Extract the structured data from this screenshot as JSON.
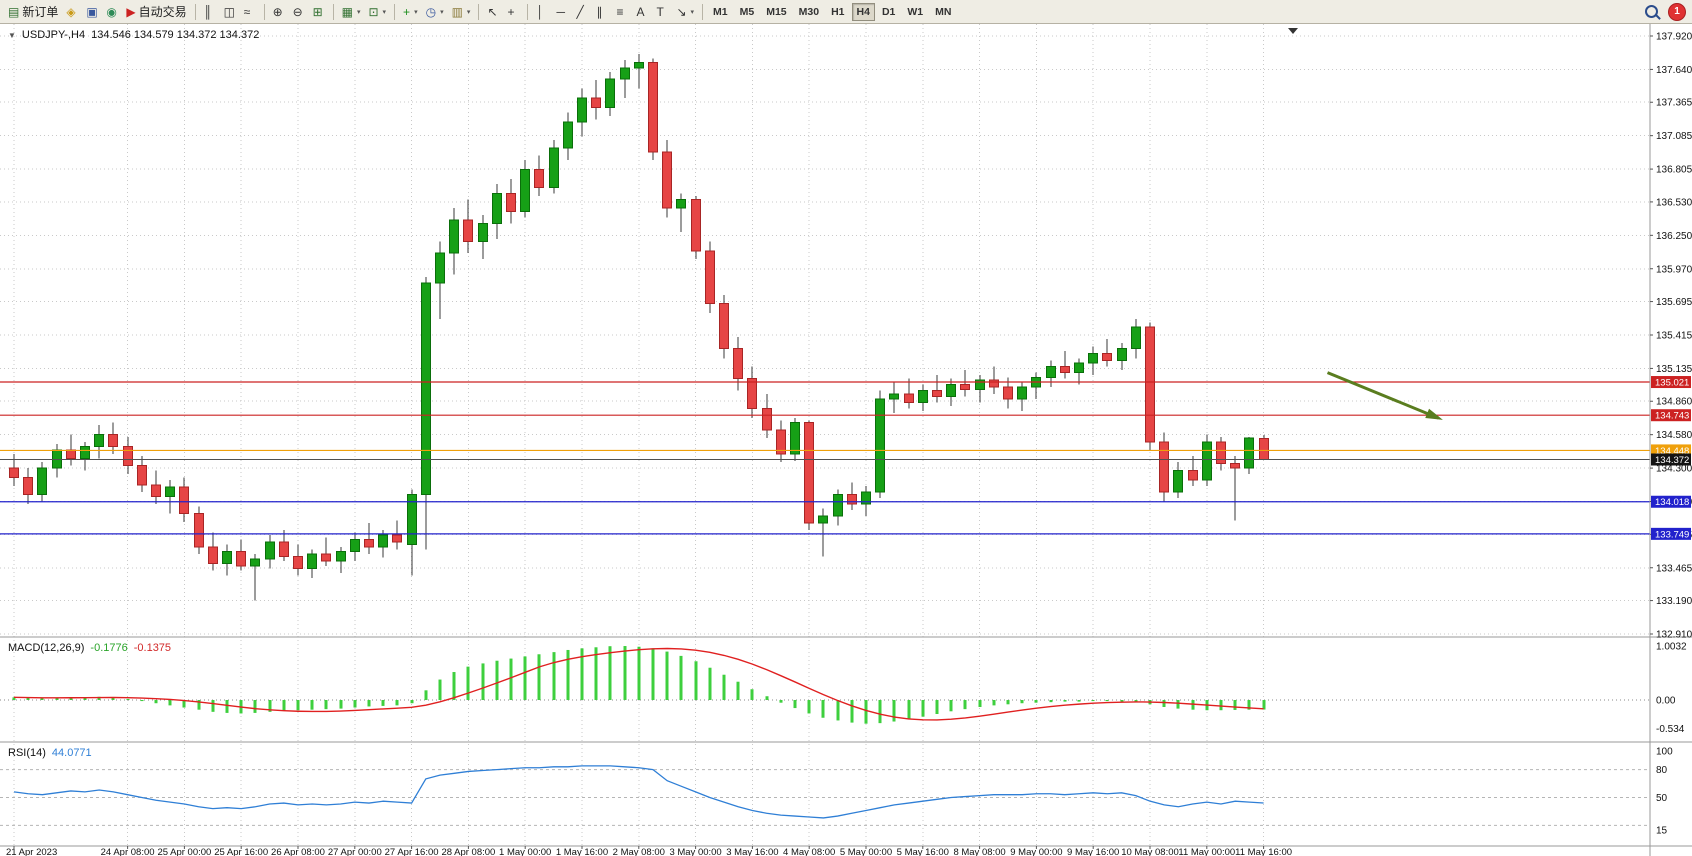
{
  "toolbar": {
    "badge": "1",
    "items": [
      {
        "name": "new-order-button",
        "glyph": "▤",
        "color": "#2f6f2f",
        "label": "新订单"
      },
      {
        "name": "funds-button",
        "glyph": "◈",
        "color": "#c99a18"
      },
      {
        "name": "terminal-button",
        "glyph": "▣",
        "color": "#39589e"
      },
      {
        "name": "support-button",
        "glyph": "◉",
        "color": "#2e8b57"
      },
      {
        "name": "auto-trading-button",
        "glyph": "▶",
        "color": "#cc2222",
        "label": "自动交易"
      },
      {
        "sep": true
      },
      {
        "name": "bars-chart-button",
        "glyph": "║",
        "color": "#333333"
      },
      {
        "name": "candlestick-chart-button",
        "glyph": "◫",
        "color": "#333333"
      },
      {
        "name": "line-chart-button",
        "glyph": "≈",
        "color": "#333333"
      },
      {
        "sep": true
      },
      {
        "name": "zoom-in-button",
        "glyph": "⊕",
        "color": "#333333"
      },
      {
        "name": "zoom-out-button",
        "glyph": "⊖",
        "color": "#333333"
      },
      {
        "name": "tile-windows-button",
        "glyph": "⊞",
        "color": "#2f6f2f"
      },
      {
        "sep": true
      },
      {
        "name": "arrange-charts-button",
        "glyph": "▦",
        "color": "#2f6f2f",
        "dropdown": true
      },
      {
        "name": "new-chart-button",
        "glyph": "⊡",
        "color": "#2f6f2f",
        "dropdown": true
      },
      {
        "sep": true
      },
      {
        "name": "indicators-button",
        "glyph": "+",
        "color": "#1e8f1e",
        "dropdown": true
      },
      {
        "name": "periods-button",
        "glyph": "◷",
        "color": "#39589e",
        "dropdown": true
      },
      {
        "name": "templates-button",
        "glyph": "▥",
        "color": "#8a7a3a",
        "dropdown": true
      },
      {
        "sep": true
      },
      {
        "name": "cursor-button",
        "glyph": "↖",
        "color": "#333333"
      },
      {
        "name": "crosshair-button",
        "glyph": "+",
        "color": "#333333"
      },
      {
        "sep": true
      },
      {
        "name": "vertical-line-button",
        "glyph": "│",
        "color": "#333333"
      },
      {
        "name": "horizontal-line-button",
        "glyph": "─",
        "color": "#333333"
      },
      {
        "name": "trendline-button",
        "glyph": "╱",
        "color": "#333333"
      },
      {
        "name": "channel-button",
        "glyph": "∥",
        "color": "#333333"
      },
      {
        "name": "fibonacci-button",
        "glyph": "≡",
        "color": "#333333"
      },
      {
        "name": "text-button",
        "glyph": "A",
        "color": "#333333"
      },
      {
        "name": "label-button",
        "glyph": "T",
        "color": "#333333"
      },
      {
        "name": "arrows-button",
        "glyph": "↘",
        "color": "#333333",
        "dropdown": true
      },
      {
        "sep": true
      }
    ],
    "timeframes": {
      "items": [
        "M1",
        "M5",
        "M15",
        "M30",
        "H1",
        "H4",
        "D1",
        "W1",
        "MN"
      ],
      "active": "H4"
    }
  },
  "overlays": {
    "collapse_icon": "▼",
    "symbol_text": "USDJPY-,H4",
    "ohlc_text": "134.546 134.579 134.372 134.372"
  },
  "chart_data": {
    "type": "candlestick",
    "symbol": "USDJPY-",
    "timeframe": "H4",
    "ylim": [
      132.91,
      137.92
    ],
    "price_axis_labels": [
      "137.920",
      "137.640",
      "137.365",
      "137.085",
      "136.805",
      "136.530",
      "136.250",
      "135.970",
      "135.695",
      "135.415",
      "135.135",
      "134.860",
      "134.580",
      "134.300",
      "134.020",
      "133.745",
      "133.465",
      "133.190",
      "132.910"
    ],
    "time_ticks": [
      {
        "index": 0,
        "label": "21 Apr 2023"
      },
      {
        "index": 8,
        "label": "24 Apr 08:00"
      },
      {
        "index": 12,
        "label": "25 Apr 00:00"
      },
      {
        "index": 16,
        "label": "25 Apr 16:00"
      },
      {
        "index": 20,
        "label": "26 Apr 08:00"
      },
      {
        "index": 24,
        "label": "27 Apr 00:00"
      },
      {
        "index": 28,
        "label": "27 Apr 16:00"
      },
      {
        "index": 32,
        "label": "28 Apr 08:00"
      },
      {
        "index": 36,
        "label": "1 May 00:00"
      },
      {
        "index": 40,
        "label": "1 May 16:00"
      },
      {
        "index": 44,
        "label": "2 May 08:00"
      },
      {
        "index": 48,
        "label": "3 May 00:00"
      },
      {
        "index": 52,
        "label": "3 May 16:00"
      },
      {
        "index": 56,
        "label": "4 May 08:00"
      },
      {
        "index": 60,
        "label": "5 May 00:00"
      },
      {
        "index": 64,
        "label": "5 May 16:00"
      },
      {
        "index": 68,
        "label": "8 May 08:00"
      },
      {
        "index": 72,
        "label": "9 May 00:00"
      },
      {
        "index": 76,
        "label": "9 May 16:00"
      },
      {
        "index": 80,
        "label": "10 May 08:00"
      },
      {
        "index": 84,
        "label": "11 May 00:00"
      },
      {
        "index": 88,
        "label": "11 May 16:00"
      }
    ],
    "candles": [
      [
        134.3,
        134.42,
        134.15,
        134.22
      ],
      [
        134.22,
        134.3,
        134.0,
        134.08
      ],
      [
        134.08,
        134.35,
        134.02,
        134.3
      ],
      [
        134.3,
        134.5,
        134.22,
        134.45
      ],
      [
        134.45,
        134.58,
        134.32,
        134.38
      ],
      [
        134.38,
        134.52,
        134.28,
        134.48
      ],
      [
        134.48,
        134.66,
        134.38,
        134.58
      ],
      [
        134.58,
        134.68,
        134.42,
        134.48
      ],
      [
        134.48,
        134.56,
        134.25,
        134.32
      ],
      [
        134.32,
        134.4,
        134.1,
        134.16
      ],
      [
        134.16,
        134.28,
        134.0,
        134.06
      ],
      [
        134.06,
        134.2,
        133.92,
        134.14
      ],
      [
        134.14,
        134.22,
        133.85,
        133.92
      ],
      [
        133.92,
        133.98,
        133.58,
        133.64
      ],
      [
        133.64,
        133.76,
        133.44,
        133.5
      ],
      [
        133.5,
        133.66,
        133.4,
        133.6
      ],
      [
        133.6,
        133.7,
        133.44,
        133.48
      ],
      [
        133.48,
        133.58,
        133.19,
        133.54
      ],
      [
        133.54,
        133.74,
        133.46,
        133.68
      ],
      [
        133.68,
        133.78,
        133.52,
        133.56
      ],
      [
        133.56,
        133.66,
        133.4,
        133.46
      ],
      [
        133.46,
        133.62,
        133.38,
        133.58
      ],
      [
        133.58,
        133.72,
        133.48,
        133.52
      ],
      [
        133.52,
        133.64,
        133.42,
        133.6
      ],
      [
        133.6,
        133.76,
        133.52,
        133.7
      ],
      [
        133.7,
        133.84,
        133.58,
        133.64
      ],
      [
        133.64,
        133.78,
        133.55,
        133.74
      ],
      [
        133.74,
        133.86,
        133.62,
        133.68
      ],
      [
        133.66,
        134.12,
        133.4,
        134.08
      ],
      [
        134.08,
        135.9,
        133.62,
        135.85
      ],
      [
        135.85,
        136.2,
        135.55,
        136.1
      ],
      [
        136.1,
        136.48,
        135.92,
        136.38
      ],
      [
        136.38,
        136.55,
        136.1,
        136.2
      ],
      [
        136.2,
        136.42,
        136.05,
        136.35
      ],
      [
        136.35,
        136.68,
        136.22,
        136.6
      ],
      [
        136.6,
        136.72,
        136.35,
        136.45
      ],
      [
        136.45,
        136.88,
        136.4,
        136.8
      ],
      [
        136.8,
        136.92,
        136.58,
        136.65
      ],
      [
        136.65,
        137.05,
        136.6,
        136.98
      ],
      [
        136.98,
        137.28,
        136.88,
        137.2
      ],
      [
        137.2,
        137.48,
        137.08,
        137.4
      ],
      [
        137.4,
        137.55,
        137.22,
        137.32
      ],
      [
        137.32,
        137.62,
        137.25,
        137.56
      ],
      [
        137.56,
        137.72,
        137.4,
        137.65
      ],
      [
        137.65,
        137.77,
        137.48,
        137.7
      ],
      [
        137.7,
        137.73,
        136.88,
        136.95
      ],
      [
        136.95,
        137.05,
        136.4,
        136.48
      ],
      [
        136.48,
        136.6,
        136.28,
        136.55
      ],
      [
        136.55,
        136.58,
        136.05,
        136.12
      ],
      [
        136.12,
        136.2,
        135.6,
        135.68
      ],
      [
        135.68,
        135.75,
        135.22,
        135.3
      ],
      [
        135.3,
        135.4,
        134.95,
        135.05
      ],
      [
        135.05,
        135.15,
        134.72,
        134.8
      ],
      [
        134.8,
        134.92,
        134.55,
        134.62
      ],
      [
        134.62,
        134.7,
        134.35,
        134.42
      ],
      [
        134.42,
        134.72,
        134.36,
        134.68
      ],
      [
        134.68,
        134.7,
        133.78,
        133.84
      ],
      [
        133.84,
        133.96,
        133.56,
        133.9
      ],
      [
        133.9,
        134.12,
        133.82,
        134.08
      ],
      [
        134.08,
        134.18,
        133.95,
        134.0
      ],
      [
        134.0,
        134.15,
        133.9,
        134.1
      ],
      [
        134.1,
        134.95,
        134.05,
        134.88
      ],
      [
        134.88,
        135.02,
        134.76,
        134.92
      ],
      [
        134.92,
        135.05,
        134.8,
        134.85
      ],
      [
        134.85,
        135.0,
        134.78,
        134.95
      ],
      [
        134.95,
        135.08,
        134.85,
        134.9
      ],
      [
        134.9,
        135.05,
        134.82,
        135.0
      ],
      [
        135.0,
        135.12,
        134.9,
        134.96
      ],
      [
        134.96,
        135.08,
        134.85,
        135.04
      ],
      [
        135.04,
        135.15,
        134.92,
        134.98
      ],
      [
        134.98,
        135.06,
        134.8,
        134.88
      ],
      [
        134.88,
        135.02,
        134.78,
        134.98
      ],
      [
        134.98,
        135.1,
        134.88,
        135.06
      ],
      [
        135.06,
        135.2,
        134.98,
        135.15
      ],
      [
        135.15,
        135.28,
        135.05,
        135.1
      ],
      [
        135.1,
        135.22,
        135.0,
        135.18
      ],
      [
        135.18,
        135.32,
        135.08,
        135.26
      ],
      [
        135.26,
        135.38,
        135.15,
        135.2
      ],
      [
        135.2,
        135.35,
        135.12,
        135.3
      ],
      [
        135.3,
        135.55,
        135.22,
        135.48
      ],
      [
        135.48,
        135.52,
        134.45,
        134.52
      ],
      [
        134.52,
        134.6,
        134.02,
        134.1
      ],
      [
        134.1,
        134.35,
        134.05,
        134.28
      ],
      [
        134.28,
        134.4,
        134.15,
        134.2
      ],
      [
        134.2,
        134.58,
        134.15,
        134.52
      ],
      [
        134.52,
        134.56,
        134.28,
        134.34
      ],
      [
        134.34,
        134.4,
        133.86,
        134.3
      ],
      [
        134.3,
        134.56,
        134.25,
        134.55
      ],
      [
        134.546,
        134.579,
        134.372,
        134.372
      ]
    ],
    "hlines": [
      {
        "price": 135.021,
        "label": "135.021",
        "color": "#cc2222"
      },
      {
        "price": 134.743,
        "label": "134.743",
        "color": "#cc2222"
      },
      {
        "price": 134.448,
        "label": "134.448",
        "color": "#efa00b"
      },
      {
        "price": 134.018,
        "label": "134.018",
        "color": "#2222cc"
      },
      {
        "price": 133.749,
        "label": "133.749",
        "color": "#2222cc"
      }
    ],
    "current_price": {
      "price": 134.372,
      "label": "134.372",
      "line_color": "#505050",
      "tag_color": "#141414"
    },
    "arrow": {
      "from_slot": 92.5,
      "from_price": 135.1,
      "to_slot": 100.3,
      "to_price": 134.72,
      "color": "#5a7d1f"
    },
    "macd": {
      "label": "MACD(12,26,9)",
      "value_main": "-0.1776",
      "value_signal": "-0.1375",
      "axis": [
        "1.0032",
        "0.00",
        "-0.534"
      ],
      "values": [
        0.05,
        0.04,
        0.03,
        0.04,
        0.05,
        0.05,
        0.06,
        0.05,
        0.02,
        -0.02,
        -0.06,
        -0.1,
        -0.14,
        -0.18,
        -0.22,
        -0.24,
        -0.25,
        -0.24,
        -0.22,
        -0.2,
        -0.19,
        -0.18,
        -0.17,
        -0.16,
        -0.14,
        -0.12,
        -0.11,
        -0.1,
        -0.06,
        0.18,
        0.38,
        0.52,
        0.62,
        0.68,
        0.73,
        0.77,
        0.81,
        0.85,
        0.89,
        0.93,
        0.96,
        0.98,
        1.0,
        1.0032,
        0.99,
        0.96,
        0.9,
        0.82,
        0.72,
        0.6,
        0.47,
        0.34,
        0.2,
        0.07,
        -0.05,
        -0.15,
        -0.25,
        -0.33,
        -0.38,
        -0.42,
        -0.44,
        -0.43,
        -0.4,
        -0.36,
        -0.31,
        -0.26,
        -0.21,
        -0.17,
        -0.13,
        -0.1,
        -0.08,
        -0.06,
        -0.05,
        -0.04,
        -0.03,
        -0.03,
        -0.02,
        -0.02,
        -0.03,
        -0.04,
        -0.08,
        -0.13,
        -0.16,
        -0.18,
        -0.19,
        -0.19,
        -0.185,
        -0.18,
        -0.1776
      ]
    },
    "rsi": {
      "label": "RSI(14)",
      "value": "44.0771",
      "axis": [
        "100",
        "80",
        "50",
        "15"
      ],
      "levels": [
        80,
        50,
        20
      ],
      "values": [
        56,
        54,
        53,
        55,
        57,
        56,
        58,
        56,
        53,
        50,
        47,
        45,
        43,
        40,
        38,
        39,
        38,
        40,
        43,
        44,
        42,
        43,
        42,
        43,
        45,
        44,
        46,
        45,
        44,
        70,
        74,
        76,
        78,
        79,
        80,
        81,
        82,
        82,
        83,
        83,
        84,
        84,
        84,
        83,
        82,
        80,
        68,
        62,
        56,
        50,
        45,
        40,
        36,
        33,
        31,
        30,
        29,
        28,
        30,
        33,
        36,
        39,
        42,
        44,
        46,
        48,
        50,
        51,
        52,
        53,
        53,
        53,
        54,
        54,
        53,
        54,
        55,
        54,
        55,
        52,
        46,
        42,
        40,
        43,
        45,
        43,
        46,
        45,
        44.0771
      ]
    }
  },
  "colors": {
    "grid": "#c9c9c9",
    "wick": "#3a3a3a",
    "candle_up": "#16a016",
    "candle_up_stroke": "#0a6e0a",
    "candle_down": "#e64545",
    "candle_down_stroke": "#a82525",
    "macd_bar": "#3ecf3e",
    "macd_signal": "#e02020",
    "rsi_line": "#2f7fd6"
  }
}
